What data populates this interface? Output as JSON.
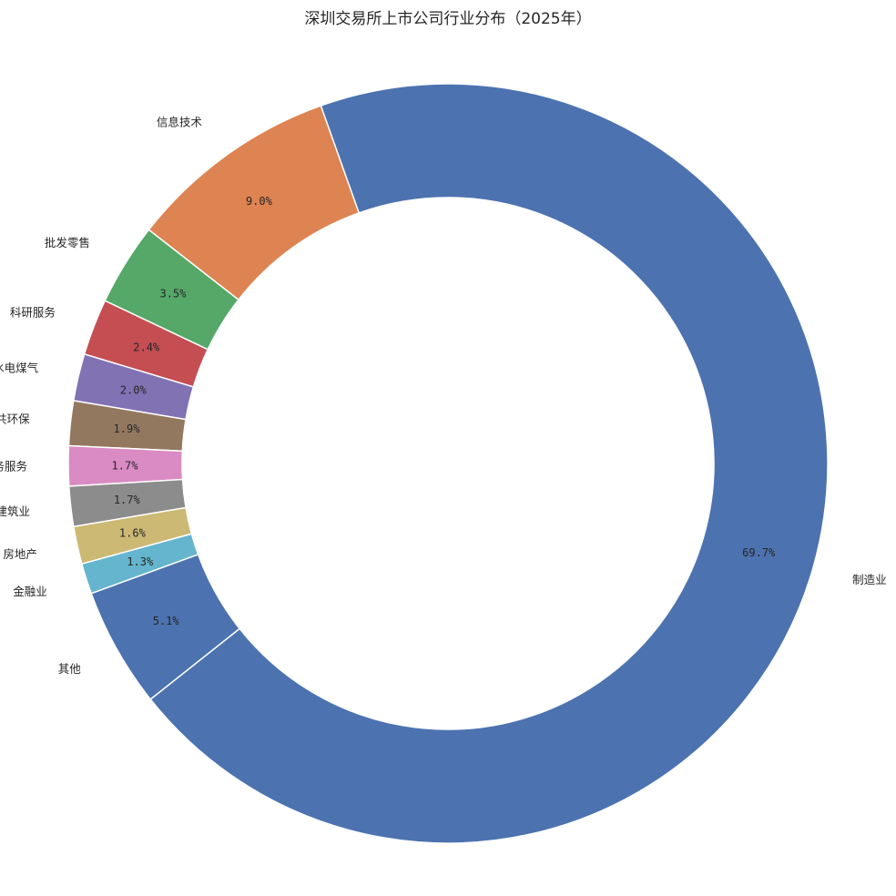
{
  "chart_data": {
    "type": "pie",
    "variant": "donut",
    "title": "深圳交易所上市公司行业分布（2025年）",
    "slices": [
      {
        "label": "制造业",
        "value": 69.7,
        "percent_label": "69.7%",
        "color": "#4c72b0"
      },
      {
        "label": "信息技术",
        "value": 9.0,
        "percent_label": "9.0%",
        "color": "#dd8452"
      },
      {
        "label": "批发零售",
        "value": 3.5,
        "percent_label": "3.5%",
        "color": "#55a868"
      },
      {
        "label": "科研服务",
        "value": 2.4,
        "percent_label": "2.4%",
        "color": "#c44e52"
      },
      {
        "label": "水电煤气",
        "value": 2.0,
        "percent_label": "2.0%",
        "color": "#8172b3"
      },
      {
        "label": "公共环保",
        "value": 1.9,
        "percent_label": "1.9%",
        "color": "#937860"
      },
      {
        "label": "商务服务",
        "value": 1.7,
        "percent_label": "1.7%",
        "color": "#da8bc3"
      },
      {
        "label": "建筑业",
        "value": 1.7,
        "percent_label": "1.7%",
        "color": "#8c8c8c"
      },
      {
        "label": "房地产",
        "value": 1.6,
        "percent_label": "1.6%",
        "color": "#ccb974"
      },
      {
        "label": "金融业",
        "value": 1.3,
        "percent_label": "1.3%",
        "color": "#64b5cd"
      },
      {
        "label": "其他",
        "value": 5.1,
        "percent_label": "5.1%",
        "color": "#4c72b0"
      }
    ],
    "legend": "none"
  }
}
